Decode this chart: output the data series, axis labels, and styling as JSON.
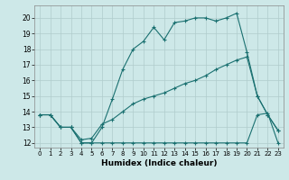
{
  "title": "",
  "xlabel": "Humidex (Indice chaleur)",
  "ylabel": "",
  "background_color": "#cde8e8",
  "grid_color": "#b0cccc",
  "line_color": "#1a7070",
  "xlim": [
    -0.5,
    23.5
  ],
  "ylim": [
    11.7,
    20.8
  ],
  "xticks": [
    0,
    1,
    2,
    3,
    4,
    5,
    6,
    7,
    8,
    9,
    10,
    11,
    12,
    13,
    14,
    15,
    16,
    17,
    18,
    19,
    20,
    21,
    22,
    23
  ],
  "yticks": [
    12,
    13,
    14,
    15,
    16,
    17,
    18,
    19,
    20
  ],
  "series1_x": [
    0,
    1,
    2,
    3,
    4,
    5,
    6,
    7,
    8,
    9,
    10,
    11,
    12,
    13,
    14,
    15,
    16,
    17,
    18,
    19,
    20,
    21,
    22,
    23
  ],
  "series1_y": [
    13.8,
    13.8,
    13.0,
    13.0,
    12.0,
    12.0,
    13.0,
    14.8,
    16.7,
    18.0,
    18.5,
    19.4,
    18.6,
    19.7,
    19.8,
    20.0,
    20.0,
    19.8,
    20.0,
    20.3,
    17.8,
    15.0,
    13.8,
    12.8
  ],
  "series2_x": [
    0,
    1,
    2,
    3,
    4,
    5,
    6,
    7,
    8,
    9,
    10,
    11,
    12,
    13,
    14,
    15,
    16,
    17,
    18,
    19,
    20,
    21,
    22,
    23
  ],
  "series2_y": [
    13.8,
    13.8,
    13.0,
    13.0,
    12.2,
    12.3,
    13.2,
    13.5,
    14.0,
    14.5,
    14.8,
    15.0,
    15.2,
    15.5,
    15.8,
    16.0,
    16.3,
    16.7,
    17.0,
    17.3,
    17.5,
    15.0,
    13.8,
    12.8
  ],
  "series3_x": [
    0,
    1,
    2,
    3,
    4,
    5,
    6,
    7,
    8,
    9,
    10,
    11,
    12,
    13,
    14,
    15,
    16,
    17,
    18,
    19,
    20,
    21,
    22,
    23
  ],
  "series3_y": [
    13.8,
    13.8,
    13.0,
    13.0,
    12.0,
    12.0,
    12.0,
    12.0,
    12.0,
    12.0,
    12.0,
    12.0,
    12.0,
    12.0,
    12.0,
    12.0,
    12.0,
    12.0,
    12.0,
    12.0,
    12.0,
    13.8,
    13.9,
    12.0
  ]
}
